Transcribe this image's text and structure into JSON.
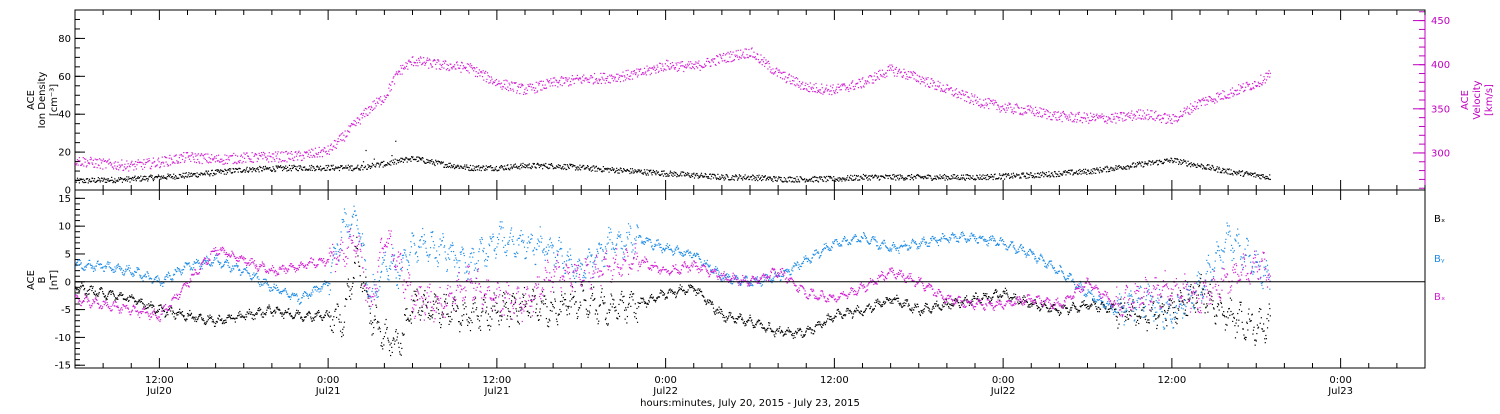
{
  "colors": {
    "black": "#000000",
    "magenta": "#d21ed2",
    "blue": "#1e8ce6"
  },
  "chart_data": [
    {
      "type": "scatter",
      "panel": "top",
      "ylabel_lines": [
        "ACE",
        "Ion Density",
        "[cm⁻³]"
      ],
      "y2label_lines": [
        "ACE",
        "Velocity",
        "[km/s]"
      ],
      "ylim": [
        0,
        95
      ],
      "y_ticks": [
        0,
        20,
        40,
        60,
        80
      ],
      "y2lim": [
        258,
        462
      ],
      "y2_ticks": [
        300,
        350,
        400,
        450
      ],
      "series": [
        {
          "name": "",
          "axis": "left",
          "color": "black",
          "x": [
            6,
            10,
            14,
            18,
            22,
            26,
            28,
            30,
            32,
            34,
            36,
            38,
            40,
            42,
            44,
            46,
            48,
            50,
            52,
            54,
            56,
            58,
            60,
            62,
            66,
            70,
            74,
            76,
            78,
            80,
            84,
            88,
            91
          ],
          "y": [
            5,
            6,
            8,
            11,
            12,
            12,
            14,
            17,
            14,
            12,
            12,
            13,
            13,
            12,
            11,
            10,
            9,
            8,
            7,
            7,
            6,
            6,
            6,
            7,
            7,
            7,
            8,
            9,
            10,
            12,
            16,
            10,
            7
          ]
        },
        {
          "name": "",
          "axis": "right",
          "color": "magenta",
          "x": [
            6,
            8,
            10,
            12,
            14,
            16,
            18,
            20,
            22,
            24,
            25,
            26,
            27,
            28,
            29,
            30,
            32,
            34,
            36,
            38,
            40,
            42,
            44,
            46,
            48,
            50,
            52,
            54,
            56,
            58,
            60,
            62,
            64,
            66,
            68,
            70,
            72,
            74,
            76,
            78,
            80,
            82,
            84,
            86,
            88,
            90,
            91
          ],
          "y": [
            292,
            288,
            286,
            290,
            296,
            293,
            295,
            296,
            297,
            303,
            318,
            335,
            352,
            364,
            393,
            405,
            400,
            397,
            380,
            372,
            380,
            384,
            386,
            390,
            400,
            398,
            408,
            415,
            390,
            375,
            372,
            380,
            395,
            385,
            372,
            360,
            352,
            348,
            342,
            340,
            340,
            345,
            338,
            358,
            368,
            380,
            390
          ]
        }
      ]
    },
    {
      "type": "line",
      "panel": "bottom",
      "ylabel_lines": [
        "ACE",
        "B",
        "[nT]"
      ],
      "ylim": [
        -15.5,
        16.5
      ],
      "y_ticks": [
        -15,
        -10,
        -5,
        0,
        5,
        10,
        15
      ],
      "legend": [
        "Bₓ",
        "Bᵧ",
        "Bₓ"
      ],
      "series": [
        {
          "name": "Bₓ",
          "color": "black",
          "x": [
            6,
            8,
            10,
            12,
            14,
            16,
            18,
            20,
            22,
            24,
            25,
            26,
            27,
            28,
            29,
            30,
            32,
            34,
            36,
            38,
            40,
            42,
            44,
            46,
            48,
            50,
            52,
            54,
            56,
            58,
            60,
            62,
            64,
            66,
            68,
            70,
            72,
            74,
            76,
            78,
            80,
            82,
            84,
            86,
            88,
            90,
            91
          ],
          "y": [
            -1,
            -2,
            -3,
            -5,
            -6,
            -7,
            -6,
            -5,
            -6,
            -6,
            -7,
            5,
            -6,
            -10,
            -11,
            -4,
            -5,
            -6,
            -5,
            -4,
            -5,
            -3,
            -5,
            -4,
            -2,
            -1,
            -6,
            -7,
            -9,
            -9,
            -6,
            -5,
            -3,
            -5,
            -4,
            -3,
            -2,
            -4,
            -5,
            -4,
            -5,
            -6,
            -5,
            -2,
            -6,
            -8,
            -7
          ]
        },
        {
          "name": "Bᵧ",
          "color": "blue",
          "x": [
            6,
            8,
            10,
            12,
            14,
            16,
            18,
            20,
            22,
            24,
            25,
            26,
            27,
            28,
            29,
            30,
            32,
            34,
            36,
            38,
            40,
            42,
            44,
            46,
            48,
            50,
            52,
            54,
            56,
            58,
            60,
            62,
            64,
            66,
            68,
            70,
            72,
            74,
            76,
            78,
            80,
            82,
            84,
            86,
            88,
            90,
            91
          ],
          "y": [
            3,
            3,
            2,
            0,
            3,
            4,
            2,
            -1,
            -3,
            0,
            10,
            12,
            -3,
            4,
            2,
            7,
            6,
            3,
            8,
            7,
            6,
            2,
            7,
            8,
            6,
            5,
            1,
            0,
            1,
            4,
            7,
            8,
            6,
            7,
            8,
            8,
            7,
            5,
            2,
            -2,
            -5,
            -3,
            -6,
            -1,
            8,
            3,
            0
          ]
        },
        {
          "name": "Bₓ",
          "color": "magenta",
          "x": [
            6,
            8,
            10,
            12,
            14,
            16,
            18,
            20,
            22,
            24,
            25,
            26,
            27,
            28,
            29,
            30,
            32,
            34,
            36,
            38,
            40,
            42,
            44,
            46,
            48,
            50,
            52,
            54,
            56,
            58,
            60,
            62,
            64,
            66,
            68,
            70,
            72,
            74,
            76,
            78,
            80,
            82,
            84,
            86,
            88,
            90,
            91
          ],
          "y": [
            -3,
            -4,
            -5,
            -6,
            0,
            6,
            4,
            2,
            3,
            4,
            5,
            8,
            -5,
            9,
            3,
            -3,
            -4,
            0,
            -3,
            -4,
            2,
            1,
            3,
            4,
            2,
            3,
            1,
            0,
            2,
            -2,
            -3,
            -1,
            2,
            0,
            -3,
            -4,
            -4,
            -3,
            -4,
            0,
            -4,
            -2,
            -1,
            -3,
            1,
            3,
            2
          ]
        }
      ]
    }
  ],
  "x_axis": {
    "xlim": [
      6,
      102
    ],
    "major_ticks": [
      12,
      24,
      36,
      48,
      60,
      72,
      84,
      96
    ],
    "tick_time_labels": [
      "12:00",
      "0:00",
      "12:00",
      "0:00",
      "12:00",
      "0:00",
      "12:00",
      "0:00"
    ],
    "tick_date_labels": [
      "Jul20",
      "Jul21",
      "Jul21",
      "Jul22",
      "Jul22",
      "Jul23"
    ],
    "tick_date_label_at": [
      12,
      24,
      36,
      48,
      72,
      96
    ],
    "xlabel": "hours:minutes, July 20, 2015 - July 23, 2015"
  }
}
